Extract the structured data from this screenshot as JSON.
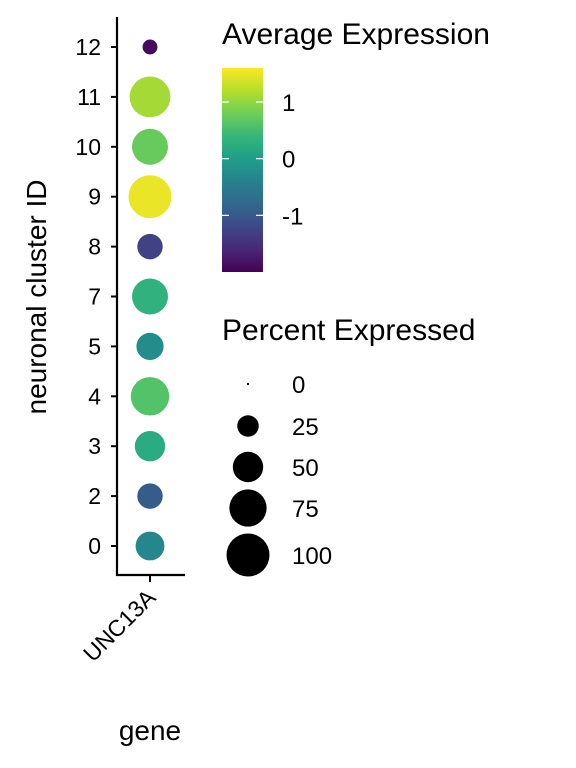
{
  "chart_data": {
    "type": "dotplot",
    "xlabel": "gene",
    "ylabel": "neuronal cluster ID",
    "x_categories": [
      "UNC13A"
    ],
    "y_categories": [
      "0",
      "2",
      "3",
      "4",
      "5",
      "7",
      "8",
      "9",
      "10",
      "11",
      "12"
    ],
    "points": [
      {
        "gene": "UNC13A",
        "cluster": "12",
        "avg_expression": -1.9,
        "pct_expressed": 12
      },
      {
        "gene": "UNC13A",
        "cluster": "11",
        "avg_expression": 1.1,
        "pct_expressed": 90
      },
      {
        "gene": "UNC13A",
        "cluster": "10",
        "avg_expression": 0.75,
        "pct_expressed": 70
      },
      {
        "gene": "UNC13A",
        "cluster": "9",
        "avg_expression": 1.5,
        "pct_expressed": 100
      },
      {
        "gene": "UNC13A",
        "cluster": "8",
        "avg_expression": -1.3,
        "pct_expressed": 35
      },
      {
        "gene": "UNC13A",
        "cluster": "7",
        "avg_expression": 0.3,
        "pct_expressed": 70
      },
      {
        "gene": "UNC13A",
        "cluster": "5",
        "avg_expression": -0.25,
        "pct_expressed": 40
      },
      {
        "gene": "UNC13A",
        "cluster": "4",
        "avg_expression": 0.6,
        "pct_expressed": 80
      },
      {
        "gene": "UNC13A",
        "cluster": "3",
        "avg_expression": 0.2,
        "pct_expressed": 50
      },
      {
        "gene": "UNC13A",
        "cluster": "2",
        "avg_expression": -0.95,
        "pct_expressed": 35
      },
      {
        "gene": "UNC13A",
        "cluster": "0",
        "avg_expression": -0.35,
        "pct_expressed": 45
      }
    ],
    "color_legend": {
      "title": "Average Expression",
      "range": [
        -2.0,
        1.6
      ],
      "ticks": [
        1,
        0,
        -1
      ],
      "tick_labels": [
        "1",
        "0",
        "-1"
      ],
      "colormap": [
        "#440154",
        "#482878",
        "#3e4989",
        "#31688e",
        "#26828e",
        "#1f9e89",
        "#35b779",
        "#6ece58",
        "#b5de2b",
        "#fde725"
      ]
    },
    "size_legend": {
      "title": "Percent Expressed",
      "values": [
        0,
        25,
        50,
        75,
        100
      ],
      "labels": [
        "0",
        "25",
        "50",
        "75",
        "100"
      ]
    },
    "grid": false,
    "legend_position": "right"
  }
}
